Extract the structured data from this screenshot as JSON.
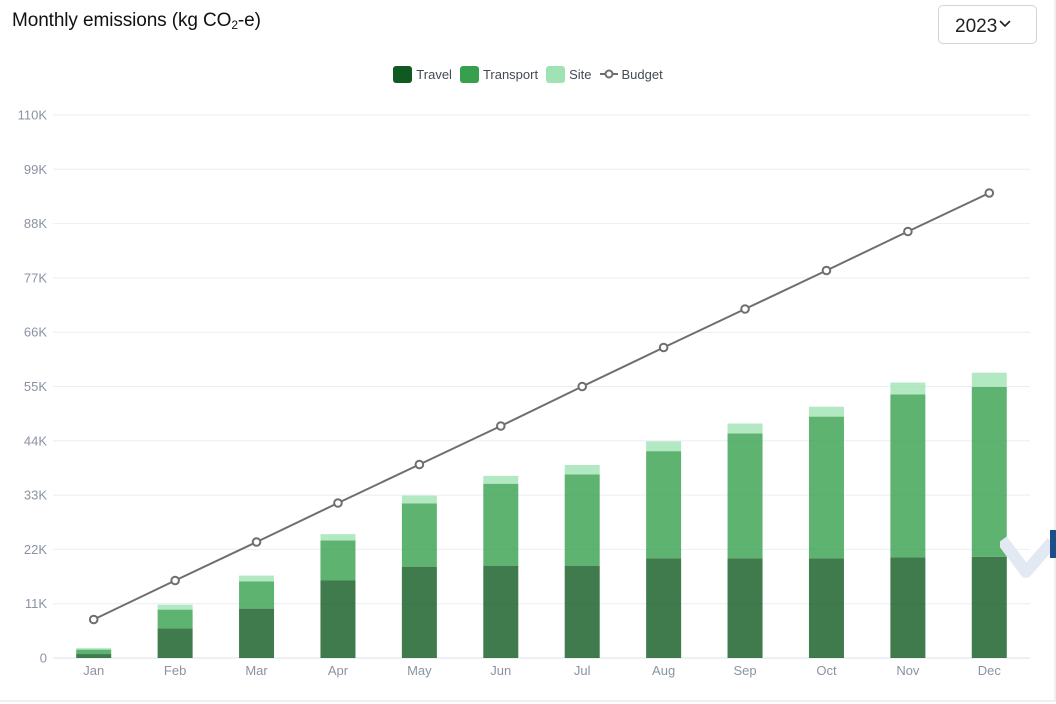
{
  "title_main": "Monthly emissions (kg CO",
  "title_sub": "2",
  "title_tail": "-e)",
  "year_select": {
    "value": "2023"
  },
  "colors": {
    "travel": "#0f5a20",
    "transport": "#37a04e",
    "site": "#9fe3b4",
    "budget": "#6e6e6e",
    "grid": "#eceef2",
    "tick": "#8a93a3"
  },
  "chart_data": {
    "type": "bar",
    "stacked": true,
    "title": "Monthly emissions (kg CO2-e)",
    "categories": [
      "Jan",
      "Feb",
      "Mar",
      "Apr",
      "May",
      "Jun",
      "Jul",
      "Aug",
      "Sep",
      "Oct",
      "Nov",
      "Dec"
    ],
    "ylim": [
      0,
      110000
    ],
    "yticks": [
      0,
      11000,
      22000,
      33000,
      44000,
      55000,
      66000,
      77000,
      88000,
      99000,
      110000
    ],
    "ytick_labels": [
      "0",
      "11K",
      "22K",
      "33K",
      "44K",
      "55K",
      "66K",
      "77K",
      "88K",
      "99K",
      "110K"
    ],
    "grid": true,
    "legend_position": "top-center",
    "series": [
      {
        "name": "Travel",
        "type": "bar",
        "color": "#0f5a20",
        "values": [
          800,
          6000,
          10000,
          15700,
          18500,
          18700,
          18700,
          20200,
          20200,
          20200,
          20400,
          20500
        ]
      },
      {
        "name": "Transport",
        "type": "bar",
        "color": "#37a04e",
        "values": [
          900,
          3800,
          5500,
          8100,
          12800,
          16600,
          18500,
          21700,
          25300,
          28700,
          33000,
          34400
        ]
      },
      {
        "name": "Site",
        "type": "bar",
        "color": "#9fe3b4",
        "values": [
          300,
          1000,
          1200,
          1300,
          1600,
          1600,
          1900,
          2000,
          2000,
          2000,
          2400,
          2900
        ]
      },
      {
        "name": "Budget",
        "type": "line",
        "color": "#6e6e6e",
        "values": [
          7800,
          15700,
          23500,
          31400,
          39200,
          47000,
          55000,
          62900,
          70700,
          78500,
          86400,
          94200
        ]
      }
    ]
  }
}
